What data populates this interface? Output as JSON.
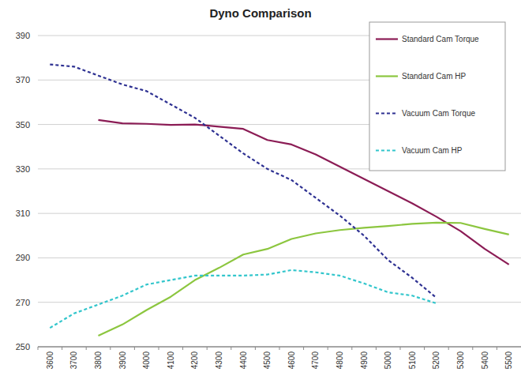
{
  "chart_data": {
    "type": "line",
    "title": "Dyno Comparison",
    "categories": [
      3600,
      3700,
      3800,
      3900,
      4000,
      4100,
      4200,
      4300,
      4400,
      4500,
      4600,
      4700,
      4800,
      4900,
      5000,
      5100,
      5200,
      5300,
      5400,
      5500
    ],
    "series": [
      {
        "name": "Standard Cam Torque",
        "color": "#8b1c55",
        "line_style": "solid",
        "values": [
          null,
          null,
          352,
          350.5,
          350.3,
          349.8,
          350,
          349,
          348,
          343,
          341,
          336.5,
          331,
          325.5,
          320,
          314.5,
          308.5,
          302,
          294,
          287
        ]
      },
      {
        "name": "Standard Cam HP",
        "color": "#8cc63f",
        "line_style": "solid",
        "values": [
          null,
          null,
          255,
          260,
          266.5,
          272.5,
          280,
          285.5,
          291.5,
          294,
          298.5,
          301,
          302.5,
          303.5,
          304.3,
          305.3,
          305.8,
          305.7,
          303,
          300.5
        ]
      },
      {
        "name": "Vacuum Cam Torque",
        "color": "#2e3192",
        "line_style": "dashed",
        "values": [
          377,
          376,
          372,
          368,
          365,
          359,
          353,
          345,
          337,
          330,
          325,
          317,
          309,
          300,
          289,
          281,
          272,
          null,
          null,
          null
        ]
      },
      {
        "name": "Vacuum Cam HP",
        "color": "#33c6cc",
        "line_style": "dashed",
        "values": [
          258.5,
          265,
          269,
          273,
          278,
          280,
          282,
          282,
          282,
          282.5,
          284.5,
          283.5,
          282,
          278.5,
          274.5,
          273,
          269.5,
          null,
          null,
          null
        ]
      }
    ],
    "ylim": [
      250,
      390
    ],
    "yticks": [
      250,
      270,
      290,
      310,
      330,
      350,
      370,
      390
    ],
    "grid": true,
    "legend": "top-right"
  }
}
